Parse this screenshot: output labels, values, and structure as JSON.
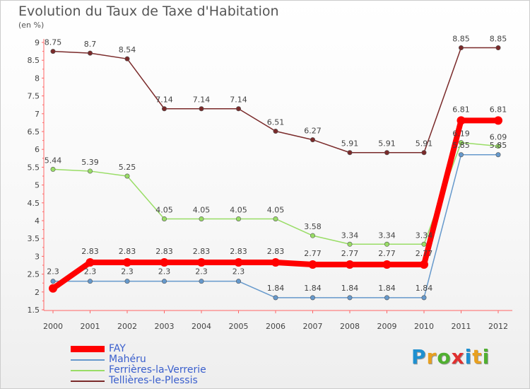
{
  "title": "Evolution du Taux de Taxe d'Habitation",
  "unit_label": "(en %)",
  "chart_data": {
    "type": "line",
    "title": "Evolution du Taux de Taxe d'Habitation",
    "ylabel": "(en %)",
    "x": [
      "2000",
      "2001",
      "2002",
      "2003",
      "2004",
      "2005",
      "2006",
      "2007",
      "2008",
      "2009",
      "2010",
      "2011",
      "2012"
    ],
    "ylim": [
      1.5,
      9
    ],
    "yticks": [
      "1.5",
      "2",
      "2.5",
      "3",
      "3.5",
      "4",
      "4.5",
      "5",
      "5.5",
      "6",
      "6.5",
      "7",
      "7.5",
      "8",
      "8.5",
      "9"
    ],
    "grid": false,
    "legend_position": "bottom-left",
    "series": [
      {
        "name": "FAY",
        "color": "#ff0000",
        "values": [
          2.1,
          2.83,
          2.83,
          2.83,
          2.83,
          2.83,
          2.83,
          2.77,
          2.77,
          2.77,
          2.77,
          6.81,
          6.81
        ],
        "labels": [
          "",
          "2.83",
          "2.83",
          "2.83",
          "2.83",
          "2.83",
          "2.83",
          "2.77",
          "2.77",
          "2.77",
          "2.77",
          "6.81",
          "6.81"
        ]
      },
      {
        "name": "Mahéru",
        "color": "#6699cc",
        "values": [
          2.3,
          2.3,
          2.3,
          2.3,
          2.3,
          2.3,
          1.84,
          1.84,
          1.84,
          1.84,
          1.84,
          5.85,
          5.85
        ],
        "labels": [
          "2.3",
          "2.3",
          "2.3",
          "2.3",
          "2.3",
          "2.3",
          "1.84",
          "1.84",
          "1.84",
          "1.84",
          "1.84",
          "5.85",
          "5.85"
        ]
      },
      {
        "name": "Ferrières-la-Verrerie",
        "color": "#99dd66",
        "values": [
          5.44,
          5.39,
          5.25,
          4.05,
          4.05,
          4.05,
          4.05,
          3.58,
          3.34,
          3.34,
          3.34,
          6.19,
          6.09
        ],
        "labels": [
          "5.44",
          "5.39",
          "5.25",
          "4.05",
          "4.05",
          "4.05",
          "4.05",
          "3.58",
          "3.34",
          "3.34",
          "3.34",
          "6.19",
          "6.09"
        ]
      },
      {
        "name": "Tellières-le-Plessis",
        "color": "#7a2a2a",
        "values": [
          8.75,
          8.7,
          8.54,
          7.14,
          7.14,
          7.14,
          6.51,
          6.27,
          5.91,
          5.91,
          5.91,
          8.85,
          8.85
        ],
        "labels": [
          "8.75",
          "8.7",
          "8.54",
          "7.14",
          "7.14",
          "7.14",
          "6.51",
          "6.27",
          "5.91",
          "5.91",
          "5.91",
          "8.85",
          "8.85"
        ]
      }
    ]
  },
  "logo": {
    "letters": [
      "P",
      "r",
      "o",
      "x",
      "i",
      "t",
      "i"
    ],
    "colors": [
      "#1e90d0",
      "#e8a020",
      "#50b030",
      "#e03030",
      "#1e90d0",
      "#e8a020",
      "#50b030"
    ]
  }
}
